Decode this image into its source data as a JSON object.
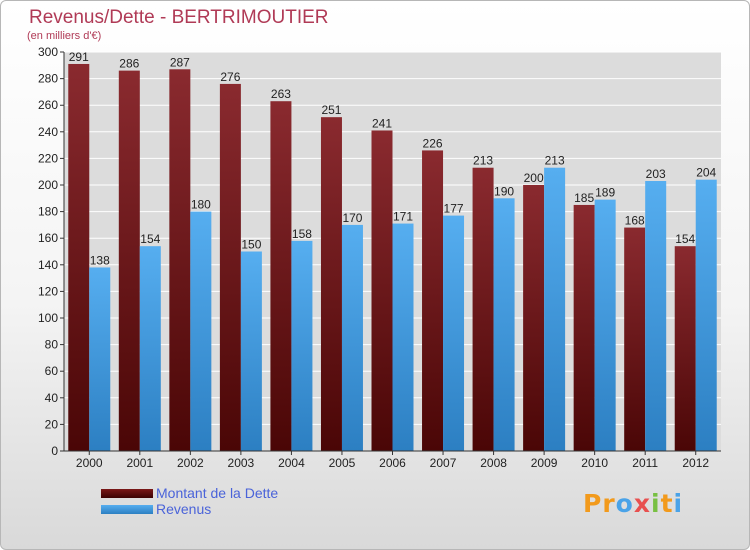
{
  "header": {
    "title": "Revenus/Dette - BERTRIMOUTIER",
    "subtitle": "(en milliers d'€)"
  },
  "logo": {
    "text": "Proxiti",
    "letters": [
      "P",
      "r",
      "o",
      "x",
      "i",
      "t",
      "i"
    ],
    "colors": [
      "#f29a1c",
      "#f29a1c",
      "#4aa3e8",
      "#e8504f",
      "#78c043",
      "#f29a1c",
      "#4aa3e8"
    ]
  },
  "colors": {
    "dette": "#7a1818",
    "revenus": "#3f98d8",
    "axis": "#333333",
    "grid": "#ffffff",
    "plot_bg": "#dcdcdc"
  },
  "chart_data": {
    "type": "bar",
    "title": "Revenus/Dette - BERTRIMOUTIER",
    "subtitle": "(en milliers d'€)",
    "categories": [
      "2000",
      "2001",
      "2002",
      "2003",
      "2004",
      "2005",
      "2006",
      "2007",
      "2008",
      "2009",
      "2010",
      "2011",
      "2012"
    ],
    "series": [
      {
        "name": "Montant de la Dette",
        "values": [
          291,
          286,
          287,
          276,
          263,
          251,
          241,
          226,
          213,
          200,
          185,
          168,
          154
        ]
      },
      {
        "name": "Revenus",
        "values": [
          138,
          154,
          180,
          150,
          158,
          170,
          171,
          177,
          190,
          213,
          189,
          203,
          204
        ]
      }
    ],
    "ylim": [
      0,
      300
    ],
    "yticks": [
      0,
      20,
      40,
      60,
      80,
      100,
      120,
      140,
      160,
      180,
      200,
      220,
      240,
      260,
      280,
      300
    ],
    "grid": true,
    "legend_position": "bottom-left"
  }
}
